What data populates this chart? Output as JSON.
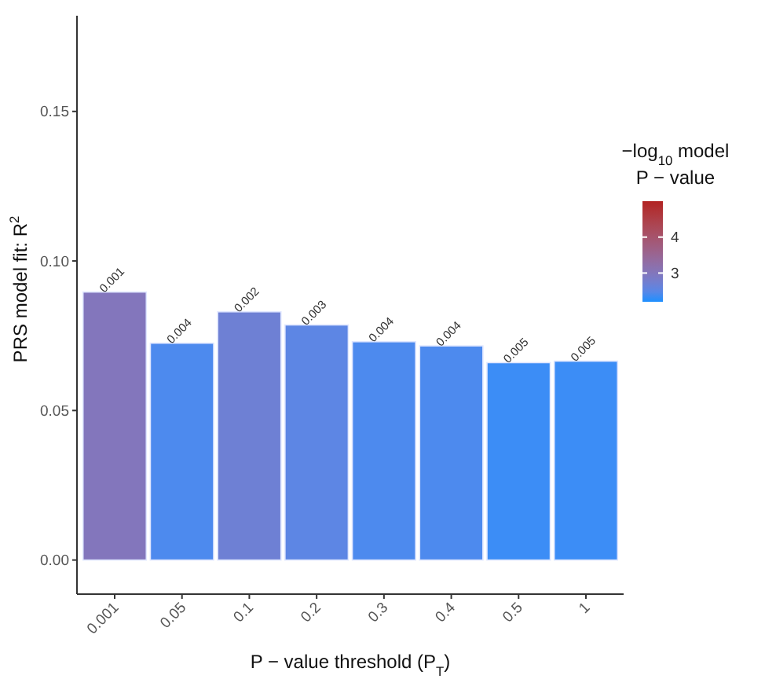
{
  "chart_data": {
    "type": "bar",
    "xlabel": "P − value threshold (P$_{T}$)",
    "ylabel": "PRS model fit:  R$^{2}$",
    "clabel": "−log$_{10}$ model\nP − value",
    "categories": [
      "0.001",
      "0.05",
      "0.1",
      "0.2",
      "0.3",
      "0.4",
      "0.5",
      "1"
    ],
    "values": [
      0.0896,
      0.0725,
      0.083,
      0.0786,
      0.073,
      0.0716,
      0.066,
      0.0665
    ],
    "cvalues": [
      3.0,
      2.4,
      2.7,
      2.52,
      2.4,
      2.4,
      2.3,
      2.3
    ],
    "annotations": [
      {
        "text": "0.001",
        "x": "0.001",
        "y": 0.0896
      },
      {
        "text": "0.004",
        "x": "0.05",
        "y": 0.0725
      },
      {
        "text": "0.002",
        "x": "0.1",
        "y": 0.083
      },
      {
        "text": "0.003",
        "x": "0.2",
        "y": 0.0786
      },
      {
        "text": "0.004",
        "x": "0.3",
        "y": 0.073
      },
      {
        "text": "0.004",
        "x": "0.4",
        "y": 0.0716
      },
      {
        "text": "0.005",
        "x": "0.5",
        "y": 0.066
      },
      {
        "text": "0.005",
        "x": "1",
        "y": 0.0665
      }
    ],
    "clim": [
      2.2,
      5.0
    ],
    "cticks": [
      3,
      4
    ],
    "ylim": [
      -0.0114,
      0.182
    ],
    "yticks": [
      {
        "value": 0,
        "label": "0.00"
      },
      {
        "value": 0.05,
        "label": "0.05"
      },
      {
        "value": 0.1,
        "label": "0.10"
      },
      {
        "value": 0.15,
        "label": "0.15"
      }
    ],
    "grid": false
  }
}
